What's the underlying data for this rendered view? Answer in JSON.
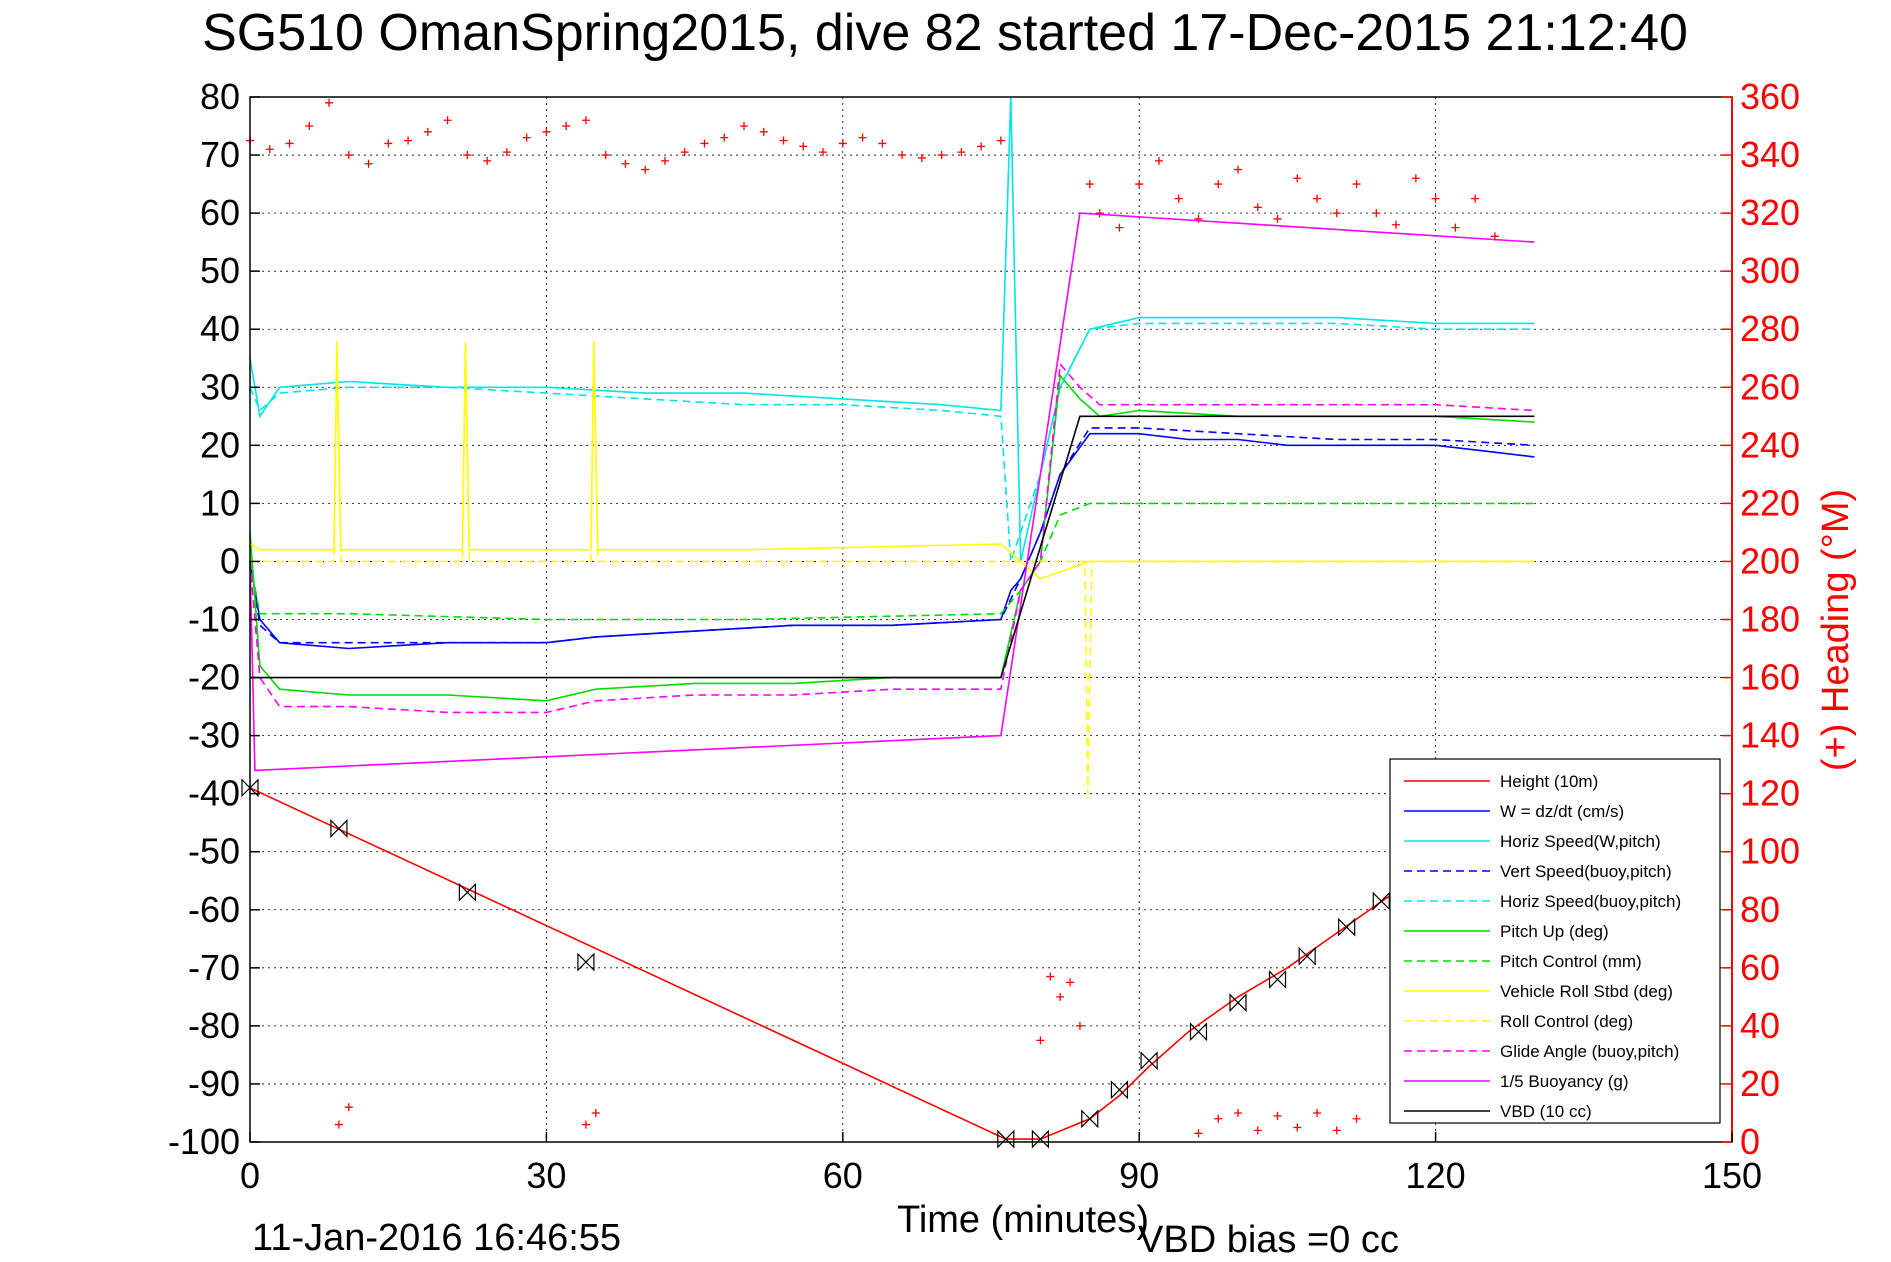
{
  "chart_data": {
    "type": "line",
    "title": "SG510 OmanSpring2015, dive 82 started 17-Dec-2015 21:12:40",
    "xlabel": "Time (minutes)",
    "ylabel": "",
    "y2label": "(+) Heading (°M)",
    "xlim": [
      0,
      150
    ],
    "ylim": [
      -100,
      80
    ],
    "y2lim": [
      0,
      360
    ],
    "xticks": [
      "0",
      "30",
      "60",
      "90",
      "120",
      "150"
    ],
    "yticks": [
      "80",
      "70",
      "60",
      "50",
      "40",
      "30",
      "20",
      "10",
      "0",
      "-10",
      "-20",
      "-30",
      "-40",
      "-50",
      "-60",
      "-70",
      "-80",
      "-90",
      "-100"
    ],
    "y2ticks": [
      "360",
      "340",
      "320",
      "300",
      "280",
      "260",
      "240",
      "220",
      "200",
      "180",
      "160",
      "140",
      "120",
      "100",
      "80",
      "60",
      "40",
      "20",
      "0"
    ],
    "grid": true,
    "legend_position": "bottom-right",
    "footer_date": "11-Jan-2016 16:46:55",
    "footer_bias": "VBD bias =0 cc",
    "series": [
      {
        "name": "Height (10m)",
        "color": "#ff0000",
        "dash": "solid",
        "x": [
          0,
          76.5,
          80,
          85,
          88,
          91,
          95,
          100,
          105,
          110,
          115,
          117
        ],
        "y": [
          -39,
          -99.5,
          -99.5,
          -96,
          -92,
          -87,
          -81,
          -75,
          -70,
          -64,
          -58,
          -56
        ]
      },
      {
        "name": "W = dz/dt (cm/s)",
        "color": "#0000ff",
        "dash": "solid",
        "x": [
          0,
          1,
          3,
          10,
          20,
          30,
          35,
          45,
          55,
          65,
          76,
          77,
          78,
          80,
          82,
          85,
          90,
          95,
          100,
          105,
          110,
          115,
          120,
          125,
          130
        ],
        "y": [
          0,
          -10,
          -14,
          -15,
          -14,
          -14,
          -13,
          -12,
          -11,
          -11,
          -10,
          -5,
          -3,
          5,
          15,
          22,
          22,
          21,
          21,
          20,
          20,
          20,
          20,
          19,
          18
        ]
      },
      {
        "name": "Horiz Speed(W,pitch)",
        "color": "#00e5e5",
        "dash": "solid",
        "x": [
          0,
          1,
          3,
          10,
          20,
          30,
          40,
          50,
          60,
          70,
          76,
          77,
          78,
          80,
          82,
          85,
          90,
          100,
          110,
          120,
          125,
          130
        ],
        "y": [
          35,
          25,
          30,
          31,
          30,
          30,
          29,
          29,
          28,
          27,
          26,
          80,
          0,
          15,
          30,
          40,
          42,
          42,
          42,
          41,
          41,
          41
        ]
      },
      {
        "name": "Vert Speed(buoy,pitch)",
        "color": "#0000ff",
        "dash": "dashed",
        "x": [
          0,
          1,
          3,
          10,
          20,
          30,
          35,
          45,
          55,
          65,
          76,
          78,
          80,
          82,
          85,
          90,
          100,
          110,
          120,
          130
        ],
        "y": [
          0,
          -11,
          -14,
          -14,
          -14,
          -14,
          -13,
          -12,
          -11,
          -11,
          -10,
          -3,
          5,
          15,
          23,
          23,
          22,
          21,
          21,
          20
        ]
      },
      {
        "name": "Horiz Speed(buoy,pitch)",
        "color": "#00e5e5",
        "dash": "dashed",
        "x": [
          0,
          1,
          3,
          10,
          20,
          30,
          40,
          50,
          60,
          70,
          76,
          77,
          78,
          80,
          82,
          85,
          90,
          100,
          110,
          120,
          130
        ],
        "y": [
          30,
          26,
          29,
          30,
          30,
          29,
          28,
          27,
          27,
          26,
          25,
          0,
          5,
          15,
          30,
          40,
          41,
          41,
          41,
          40,
          40
        ]
      },
      {
        "name": "Pitch Up (deg)",
        "color": "#00dd00",
        "dash": "solid",
        "x": [
          0,
          1,
          3,
          10,
          20,
          30,
          35,
          45,
          55,
          65,
          76,
          78,
          80,
          82,
          84,
          86,
          90,
          100,
          110,
          120,
          130
        ],
        "y": [
          5,
          -18,
          -22,
          -23,
          -23,
          -24,
          -22,
          -21,
          -21,
          -20,
          -20,
          -5,
          0,
          32,
          28,
          25,
          26,
          25,
          25,
          25,
          24
        ]
      },
      {
        "name": "Pitch Control (mm)",
        "color": "#00dd00",
        "dash": "dashed",
        "x": [
          0,
          1,
          10,
          30,
          50,
          76,
          78,
          80,
          82,
          85,
          90,
          100,
          110,
          120,
          130
        ],
        "y": [
          0,
          -9,
          -9,
          -10,
          -10,
          -9,
          -5,
          0,
          8,
          10,
          10,
          10,
          10,
          10,
          10
        ]
      },
      {
        "name": "Vehicle Roll Stbd (deg)",
        "color": "#ffff00",
        "dash": "solid",
        "x": [
          0,
          1,
          8.5,
          8.8,
          9.2,
          10,
          21.5,
          21.8,
          22.2,
          23,
          34.5,
          34.8,
          35.2,
          36,
          50,
          76,
          78,
          80,
          85,
          130
        ],
        "y": [
          3,
          2,
          2,
          37,
          2,
          2,
          2,
          37,
          2,
          2,
          2,
          37,
          2,
          2,
          2,
          3,
          0,
          -3,
          0,
          0
        ]
      },
      {
        "name": "Roll Control (deg)",
        "color": "#ffff00",
        "dash": "dashed",
        "x": [
          0,
          8.5,
          8.8,
          9.2,
          21.5,
          21.8,
          22.2,
          34.5,
          34.8,
          35.2,
          76,
          80,
          84.5,
          84.8,
          85.2,
          130
        ],
        "y": [
          0,
          0,
          38,
          0,
          0,
          38,
          0,
          0,
          38,
          0,
          0,
          0,
          0,
          -40,
          0,
          0
        ]
      },
      {
        "name": "Glide Angle (buoy,pitch)",
        "color": "#ff00ff",
        "dash": "dashed",
        "x": [
          0,
          1,
          3,
          10,
          20,
          30,
          35,
          45,
          55,
          65,
          76,
          78,
          80,
          82,
          84,
          86,
          90,
          100,
          110,
          120,
          130
        ],
        "y": [
          0,
          -20,
          -25,
          -25,
          -26,
          -26,
          -24,
          -23,
          -23,
          -22,
          -22,
          -5,
          0,
          34,
          30,
          27,
          27,
          27,
          27,
          27,
          26
        ]
      },
      {
        "name": "1/5 Buoyancy (g)",
        "color": "#ff00ff",
        "dash": "solid",
        "x": [
          0,
          0.5,
          76,
          84,
          130
        ],
        "y": [
          0,
          -36,
          -30,
          60,
          55
        ]
      },
      {
        "name": "VBD (10 cc)",
        "color": "#000000",
        "dash": "solid",
        "x": [
          0,
          76,
          84,
          130
        ],
        "y": [
          -20,
          -20,
          25,
          25
        ]
      }
    ],
    "heading_series": {
      "name": "Heading",
      "marker": "+",
      "color": "#ff0000",
      "axis": "right",
      "x": [
        0,
        2,
        4,
        6,
        8,
        10,
        12,
        14,
        16,
        18,
        20,
        22,
        24,
        26,
        28,
        30,
        32,
        34,
        36,
        38,
        40,
        42,
        44,
        46,
        48,
        50,
        52,
        54,
        56,
        58,
        60,
        62,
        64,
        66,
        68,
        70,
        72,
        74,
        76,
        85,
        86,
        88,
        90,
        92,
        94,
        96,
        98,
        100,
        102,
        104,
        106,
        108,
        110,
        112,
        114,
        116,
        118,
        120,
        122,
        124,
        126,
        80,
        81,
        82,
        83,
        84,
        9,
        10,
        34,
        35,
        96,
        98,
        100,
        102,
        104,
        106,
        108,
        110,
        112
      ],
      "y": [
        345,
        342,
        344,
        350,
        358,
        340,
        337,
        344,
        345,
        348,
        352,
        340,
        338,
        341,
        346,
        348,
        350,
        352,
        340,
        337,
        335,
        338,
        341,
        344,
        346,
        350,
        348,
        345,
        343,
        341,
        344,
        346,
        344,
        340,
        339,
        340,
        341,
        343,
        345,
        330,
        320,
        315,
        330,
        338,
        325,
        318,
        330,
        335,
        322,
        318,
        332,
        325,
        320,
        330,
        320,
        316,
        332,
        325,
        315,
        325,
        312,
        35,
        57,
        50,
        55,
        40,
        6,
        12,
        6,
        10,
        3,
        8,
        10,
        4,
        9,
        5,
        10,
        4,
        8
      ]
    },
    "markers": {
      "name": "Height markers",
      "x": [
        0,
        9,
        22,
        34,
        76.5,
        80,
        85,
        88,
        91,
        96,
        100,
        104,
        107,
        111,
        114.5
      ],
      "y": [
        -39,
        -46,
        -57,
        -69,
        -99.5,
        -99.5,
        -96,
        -91,
        -86,
        -81,
        -76,
        -72,
        -68,
        -63,
        -58.5
      ]
    }
  }
}
